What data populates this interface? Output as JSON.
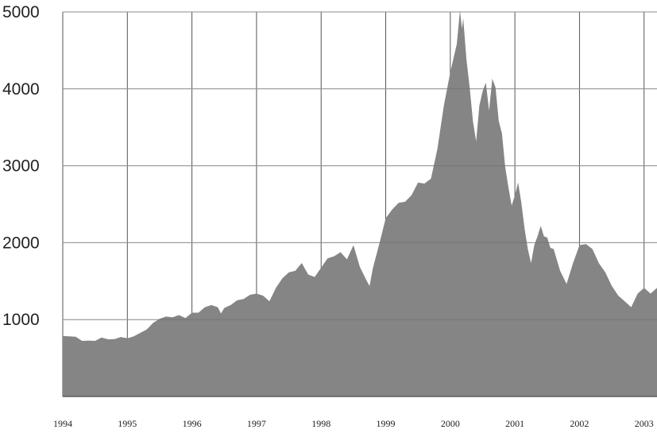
{
  "chart_data": {
    "type": "area",
    "title": "",
    "xlabel": "",
    "ylabel": "",
    "xlim": [
      1994.0,
      2003.2
    ],
    "ylim": [
      0,
      5000
    ],
    "yticks": [
      1000,
      2000,
      3000,
      4000,
      5000
    ],
    "xticks": [
      1994,
      1995,
      1996,
      1997,
      1998,
      1999,
      2000,
      2001,
      2002,
      2003
    ],
    "grid": true,
    "legend": "none",
    "colors": {
      "fill": "#858585",
      "grid": "#555555",
      "axis": "#333333",
      "text": "#222222"
    },
    "series": [
      {
        "x": [
          1994.0,
          1994.1,
          1994.2,
          1994.3,
          1994.4,
          1994.5,
          1994.6,
          1994.7,
          1994.8,
          1994.9,
          1995.0,
          1995.1,
          1995.2,
          1995.3,
          1995.4,
          1995.5,
          1995.6,
          1995.7,
          1995.8,
          1995.9,
          1996.0,
          1996.1,
          1996.2,
          1996.3,
          1996.4,
          1996.45,
          1996.5,
          1996.6,
          1996.7,
          1996.8,
          1996.9,
          1997.0,
          1997.1,
          1997.2,
          1997.3,
          1997.4,
          1997.5,
          1997.6,
          1997.7,
          1997.8,
          1997.9,
          1998.0,
          1998.1,
          1998.2,
          1998.3,
          1998.4,
          1998.5,
          1998.6,
          1998.7,
          1998.75,
          1998.8,
          1998.9,
          1999.0,
          1999.1,
          1999.2,
          1999.3,
          1999.4,
          1999.5,
          1999.6,
          1999.7,
          1999.8,
          1999.9,
          2000.0,
          2000.1,
          2000.15,
          2000.18,
          2000.2,
          2000.25,
          2000.3,
          2000.35,
          2000.4,
          2000.45,
          2000.5,
          2000.55,
          2000.6,
          2000.65,
          2000.7,
          2000.75,
          2000.8,
          2000.85,
          2000.9,
          2000.95,
          2001.0,
          2001.05,
          2001.1,
          2001.15,
          2001.2,
          2001.25,
          2001.3,
          2001.35,
          2001.4,
          2001.45,
          2001.5,
          2001.55,
          2001.6,
          2001.7,
          2001.8,
          2001.9,
          2002.0,
          2002.1,
          2002.2,
          2002.3,
          2002.4,
          2002.5,
          2002.6,
          2002.7,
          2002.8,
          2002.9,
          2003.0,
          2003.1,
          2003.2
        ],
        "values": [
          780,
          790,
          770,
          730,
          720,
          730,
          760,
          750,
          740,
          780,
          750,
          790,
          820,
          880,
          950,
          1020,
          1030,
          1040,
          1050,
          1030,
          1080,
          1100,
          1150,
          1200,
          1150,
          1090,
          1140,
          1200,
          1240,
          1280,
          1310,
          1350,
          1300,
          1250,
          1400,
          1550,
          1600,
          1650,
          1720,
          1600,
          1540,
          1690,
          1780,
          1840,
          1860,
          1800,
          1950,
          1700,
          1500,
          1450,
          1650,
          2000,
          2300,
          2450,
          2500,
          2550,
          2600,
          2800,
          2750,
          2850,
          3200,
          3800,
          4200,
          4600,
          5000,
          4800,
          4900,
          4400,
          4000,
          3600,
          3300,
          3800,
          3950,
          4100,
          3700,
          4150,
          4000,
          3600,
          3400,
          3000,
          2700,
          2500,
          2600,
          2800,
          2500,
          2200,
          1900,
          1750,
          1950,
          2100,
          2200,
          2100,
          2050,
          1950,
          1900,
          1650,
          1450,
          1750,
          1950,
          2000,
          1900,
          1750,
          1600,
          1450,
          1300,
          1250,
          1150,
          1350,
          1400,
          1350,
          1400
        ]
      }
    ]
  }
}
